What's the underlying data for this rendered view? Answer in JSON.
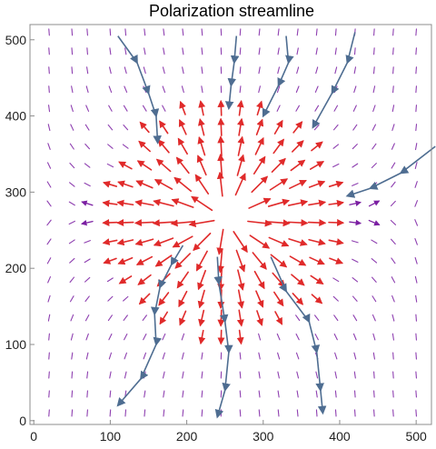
{
  "chart_data": {
    "type": "vector-field",
    "title": "Polarization streamline",
    "xlim": [
      -5,
      520
    ],
    "ylim": [
      -5,
      520
    ],
    "x_ticks": [
      0,
      100,
      200,
      300,
      400,
      500
    ],
    "y_ticks": [
      0,
      100,
      200,
      300,
      400,
      500
    ],
    "x_tick_labels": [
      "0",
      "100",
      "200",
      "300",
      "400",
      "500"
    ],
    "y_tick_labels": [
      "0",
      "100",
      "200",
      "300",
      "400",
      "500"
    ],
    "grid": false,
    "field": {
      "grid_x": [
        20,
        50,
        70,
        100,
        120,
        145,
        170,
        195,
        220,
        245,
        270,
        295,
        320,
        345,
        370,
        395,
        420,
        445,
        470,
        500
      ],
      "grid_y": [
        10,
        35,
        60,
        85,
        110,
        135,
        160,
        185,
        210,
        235,
        260,
        285,
        310,
        335,
        360,
        385,
        410,
        435,
        460,
        485,
        510
      ],
      "source_center": [
        250,
        265
      ],
      "strong_color": "#e02a2a",
      "medium_color": "#7b1fa2",
      "weak_color": "#8e3fb0"
    },
    "streamlines": {
      "color": "#4e6d91",
      "lines": [
        [
          [
            110,
            505
          ],
          [
            135,
            470
          ],
          [
            150,
            430
          ],
          [
            160,
            400
          ],
          [
            162,
            365
          ]
        ],
        [
          [
            265,
            505
          ],
          [
            262,
            470
          ],
          [
            258,
            440
          ],
          [
            255,
            410
          ]
        ],
        [
          [
            330,
            505
          ],
          [
            333,
            470
          ],
          [
            320,
            440
          ],
          [
            300,
            400
          ]
        ],
        [
          [
            420,
            510
          ],
          [
            410,
            470
          ],
          [
            390,
            430
          ],
          [
            365,
            385
          ]
        ],
        [
          [
            525,
            360
          ],
          [
            480,
            325
          ],
          [
            440,
            305
          ],
          [
            410,
            295
          ]
        ],
        [
          [
            195,
            230
          ],
          [
            180,
            205
          ],
          [
            165,
            175
          ],
          [
            158,
            140
          ],
          [
            160,
            100
          ],
          [
            140,
            55
          ],
          [
            110,
            20
          ]
        ],
        [
          [
            240,
            215
          ],
          [
            242,
            180
          ],
          [
            250,
            130
          ],
          [
            255,
            90
          ],
          [
            250,
            40
          ],
          [
            240,
            5
          ]
        ],
        [
          [
            310,
            215
          ],
          [
            330,
            170
          ],
          [
            360,
            130
          ],
          [
            370,
            90
          ],
          [
            375,
            40
          ],
          [
            378,
            10
          ]
        ]
      ]
    }
  }
}
